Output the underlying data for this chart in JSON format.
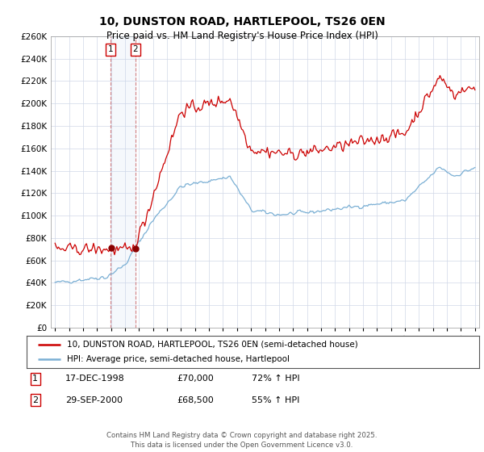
{
  "title": "10, DUNSTON ROAD, HARTLEPOOL, TS26 0EN",
  "subtitle": "Price paid vs. HM Land Registry's House Price Index (HPI)",
  "legend_line1": "10, DUNSTON ROAD, HARTLEPOOL, TS26 0EN (semi-detached house)",
  "legend_line2": "HPI: Average price, semi-detached house, Hartlepool",
  "sale1_label": "1",
  "sale1_date": "17-DEC-1998",
  "sale1_price": "£70,000",
  "sale1_hpi": "72% ↑ HPI",
  "sale2_label": "2",
  "sale2_date": "29-SEP-2000",
  "sale2_price": "£68,500",
  "sale2_hpi": "55% ↑ HPI",
  "footer": "Contains HM Land Registry data © Crown copyright and database right 2025.\nThis data is licensed under the Open Government Licence v3.0.",
  "property_color": "#cc0000",
  "hpi_color": "#7aafd4",
  "marker_box_color": "#cc0000",
  "sale_dot_color": "#8b0000",
  "background_color": "#ffffff",
  "grid_color": "#d0d8e8",
  "ylim": [
    0,
    260000
  ],
  "ytick_step": 20000,
  "sale1_x": 1998.96,
  "sale2_x": 2000.75
}
